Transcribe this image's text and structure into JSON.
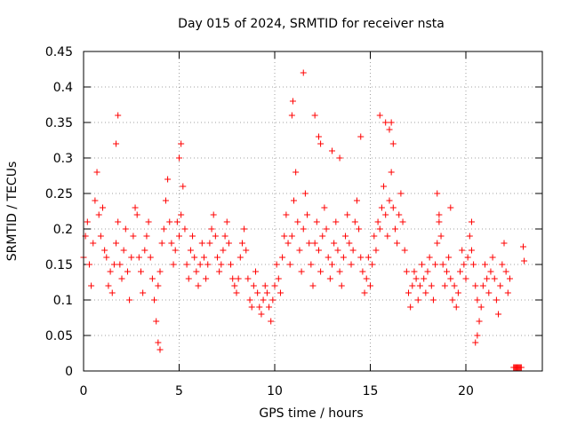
{
  "chart_data": {
    "type": "scatter",
    "title": "Day 015 of 2024, SRMTID for receiver nsta",
    "xlabel": "GPS time / hours",
    "ylabel": "SRMTID / TECUs",
    "xlim": [
      0,
      24
    ],
    "ylim": [
      0,
      0.45
    ],
    "x_ticks": [
      0,
      5,
      10,
      15,
      20
    ],
    "y_ticks": [
      0,
      0.05,
      0.1,
      0.15,
      0.2,
      0.25,
      0.3,
      0.35,
      0.4,
      0.45
    ],
    "grid": true,
    "marker": "+",
    "series": [
      {
        "name": "SRMTID",
        "color": "#ff0000",
        "x": [
          0.0,
          0.1,
          0.2,
          0.3,
          0.4,
          0.5,
          0.6,
          0.7,
          0.8,
          0.9,
          1.0,
          1.1,
          1.2,
          1.3,
          1.4,
          1.5,
          1.6,
          1.7,
          1.8,
          1.9,
          2.0,
          2.1,
          2.2,
          2.3,
          2.4,
          2.5,
          2.6,
          2.7,
          2.8,
          2.9,
          3.0,
          3.1,
          3.2,
          3.3,
          3.4,
          3.5,
          3.6,
          3.7,
          3.8,
          3.9,
          4.0,
          4.1,
          4.2,
          4.3,
          4.4,
          4.5,
          4.6,
          4.7,
          4.8,
          4.9,
          5.0,
          5.1,
          5.2,
          5.3,
          5.4,
          5.5,
          5.6,
          5.7,
          5.8,
          5.9,
          6.0,
          6.1,
          6.2,
          6.3,
          6.4,
          6.5,
          6.6,
          6.7,
          6.8,
          6.9,
          7.0,
          7.1,
          7.2,
          7.3,
          7.4,
          7.5,
          7.6,
          7.7,
          7.8,
          7.9,
          8.0,
          8.1,
          8.2,
          8.3,
          8.4,
          8.5,
          8.6,
          8.7,
          8.8,
          8.9,
          9.0,
          9.1,
          9.2,
          9.3,
          9.4,
          9.5,
          9.6,
          9.7,
          9.8,
          9.9,
          10.0,
          10.1,
          10.2,
          10.3,
          10.4,
          10.5,
          10.6,
          10.7,
          10.8,
          10.9,
          11.0,
          11.1,
          11.2,
          11.3,
          11.4,
          11.5,
          11.6,
          11.7,
          11.8,
          11.9,
          12.0,
          12.1,
          12.2,
          12.3,
          12.4,
          12.5,
          12.6,
          12.7,
          12.8,
          12.9,
          13.0,
          13.1,
          13.2,
          13.3,
          13.4,
          13.5,
          13.6,
          13.7,
          13.8,
          13.9,
          14.0,
          14.1,
          14.2,
          14.3,
          14.4,
          14.5,
          14.6,
          14.7,
          14.8,
          14.9,
          15.0,
          15.1,
          15.2,
          15.3,
          15.4,
          15.5,
          15.6,
          15.7,
          15.8,
          15.9,
          16.0,
          16.1,
          16.2,
          16.3,
          16.4,
          16.5,
          16.6,
          16.7,
          16.8,
          16.9,
          17.0,
          17.1,
          17.2,
          17.3,
          17.4,
          17.5,
          17.6,
          17.7,
          17.8,
          17.9,
          18.0,
          18.1,
          18.2,
          18.3,
          18.4,
          18.5,
          18.6,
          18.7,
          18.8,
          18.9,
          19.0,
          19.1,
          19.2,
          19.3,
          19.4,
          19.5,
          19.6,
          19.7,
          19.8,
          19.9,
          20.0,
          20.1,
          20.2,
          20.3,
          20.4,
          20.5,
          20.6,
          20.7,
          20.8,
          20.9,
          21.0,
          21.1,
          21.2,
          21.3,
          21.4,
          21.5,
          21.6,
          21.7,
          21.8,
          21.9,
          22.0,
          22.1,
          22.2,
          22.3,
          22.5,
          22.55,
          22.6,
          22.65,
          22.7,
          22.75,
          22.8,
          22.85,
          22.9,
          23.0,
          23.05,
          3.9,
          4.0,
          5.0,
          5.1,
          1.8,
          1.7,
          10.95,
          10.9,
          11.5,
          12.1,
          12.3,
          12.4,
          13.0,
          13.4,
          14.5,
          15.5,
          15.8,
          16.0,
          16.1,
          16.2,
          18.5,
          18.6,
          19.2,
          20.3,
          20.5,
          20.6
        ],
        "y": [
          0.16,
          0.19,
          0.21,
          0.15,
          0.12,
          0.18,
          0.24,
          0.28,
          0.22,
          0.19,
          0.23,
          0.17,
          0.16,
          0.12,
          0.14,
          0.11,
          0.15,
          0.18,
          0.21,
          0.15,
          0.13,
          0.17,
          0.2,
          0.14,
          0.1,
          0.16,
          0.19,
          0.23,
          0.22,
          0.16,
          0.14,
          0.11,
          0.17,
          0.19,
          0.21,
          0.16,
          0.13,
          0.1,
          0.07,
          0.12,
          0.14,
          0.18,
          0.2,
          0.24,
          0.27,
          0.21,
          0.18,
          0.15,
          0.17,
          0.21,
          0.19,
          0.22,
          0.26,
          0.2,
          0.15,
          0.13,
          0.17,
          0.19,
          0.16,
          0.14,
          0.12,
          0.15,
          0.18,
          0.16,
          0.13,
          0.15,
          0.18,
          0.2,
          0.22,
          0.19,
          0.16,
          0.14,
          0.15,
          0.17,
          0.19,
          0.21,
          0.18,
          0.15,
          0.13,
          0.12,
          0.11,
          0.13,
          0.16,
          0.18,
          0.2,
          0.17,
          0.13,
          0.1,
          0.09,
          0.12,
          0.14,
          0.11,
          0.09,
          0.08,
          0.1,
          0.12,
          0.11,
          0.09,
          0.07,
          0.1,
          0.12,
          0.15,
          0.13,
          0.11,
          0.16,
          0.19,
          0.22,
          0.18,
          0.15,
          0.19,
          0.24,
          0.28,
          0.21,
          0.17,
          0.14,
          0.2,
          0.25,
          0.22,
          0.18,
          0.15,
          0.12,
          0.18,
          0.21,
          0.17,
          0.14,
          0.19,
          0.23,
          0.2,
          0.16,
          0.13,
          0.15,
          0.18,
          0.21,
          0.17,
          0.14,
          0.12,
          0.16,
          0.19,
          0.22,
          0.18,
          0.15,
          0.17,
          0.21,
          0.24,
          0.2,
          0.16,
          0.14,
          0.11,
          0.13,
          0.16,
          0.12,
          0.15,
          0.19,
          0.17,
          0.21,
          0.2,
          0.23,
          0.26,
          0.22,
          0.19,
          0.24,
          0.28,
          0.23,
          0.2,
          0.18,
          0.22,
          0.25,
          0.21,
          0.17,
          0.14,
          0.11,
          0.09,
          0.12,
          0.14,
          0.13,
          0.1,
          0.12,
          0.15,
          0.13,
          0.11,
          0.14,
          0.16,
          0.12,
          0.1,
          0.15,
          0.18,
          0.21,
          0.19,
          0.15,
          0.12,
          0.14,
          0.16,
          0.13,
          0.1,
          0.12,
          0.09,
          0.11,
          0.14,
          0.17,
          0.15,
          0.13,
          0.16,
          0.19,
          0.17,
          0.15,
          0.12,
          0.1,
          0.07,
          0.09,
          0.12,
          0.15,
          0.13,
          0.11,
          0.14,
          0.16,
          0.13,
          0.1,
          0.08,
          0.12,
          0.15,
          0.18,
          0.14,
          0.11,
          0.13,
          0.005,
          0.005,
          0.005,
          0.005,
          0.005,
          0.005,
          0.005,
          0.005,
          0.005,
          0.175,
          0.155,
          0.04,
          0.03,
          0.3,
          0.32,
          0.36,
          0.32,
          0.38,
          0.36,
          0.42,
          0.36,
          0.33,
          0.32,
          0.31,
          0.3,
          0.33,
          0.36,
          0.35,
          0.34,
          0.35,
          0.32,
          0.25,
          0.22,
          0.23,
          0.21,
          0.04,
          0.05
        ]
      }
    ]
  }
}
